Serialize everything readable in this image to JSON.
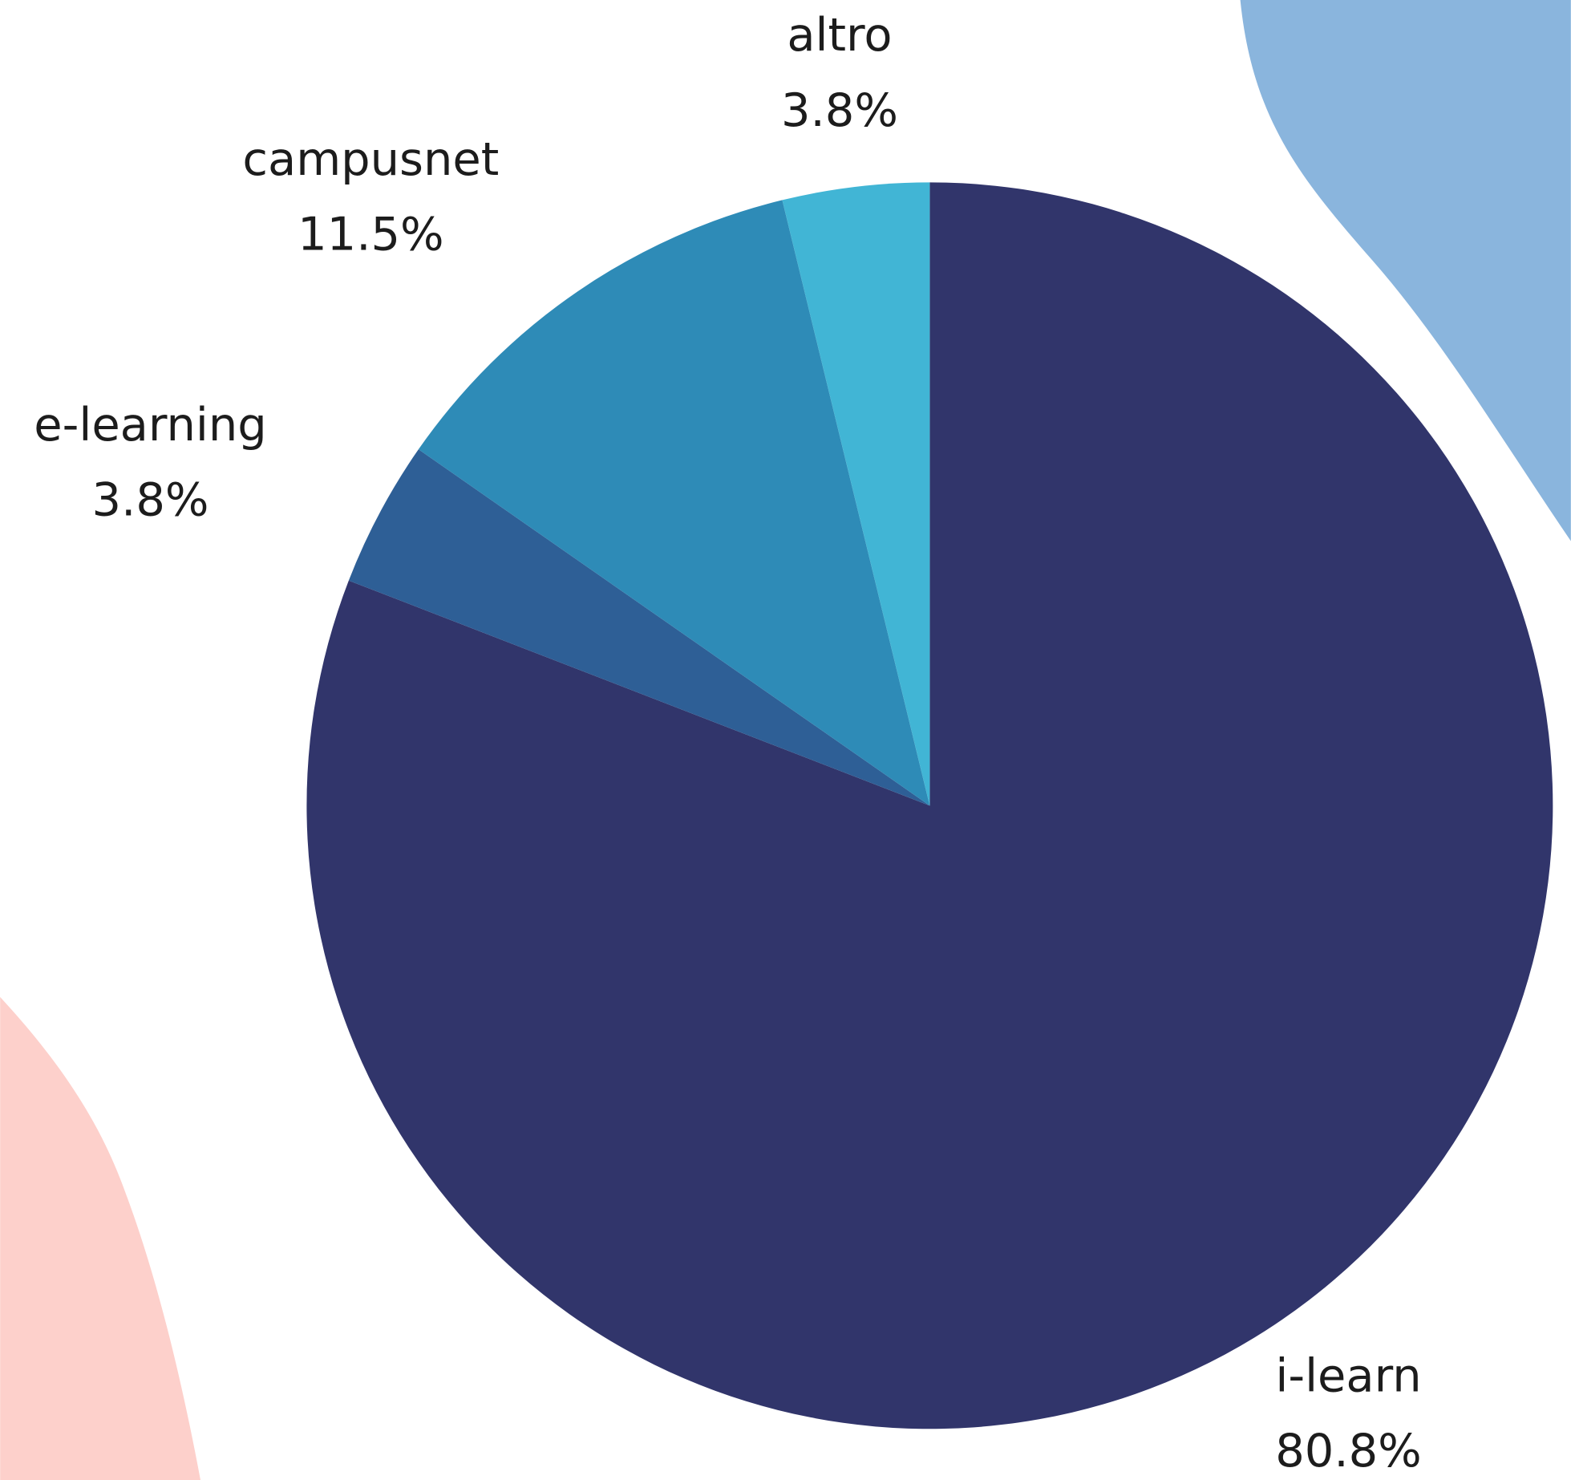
{
  "chart_data": {
    "type": "pie",
    "categories": [
      "i-learn",
      "e-learning",
      "campusnet",
      "altro"
    ],
    "values": [
      80.8,
      3.8,
      11.5,
      3.8
    ],
    "value_labels": [
      "80.8%",
      "3.8%",
      "11.5%",
      "3.8%"
    ],
    "colors": [
      "#31356b",
      "#2e5f96",
      "#2e8bb7",
      "#41b5d5"
    ]
  }
}
